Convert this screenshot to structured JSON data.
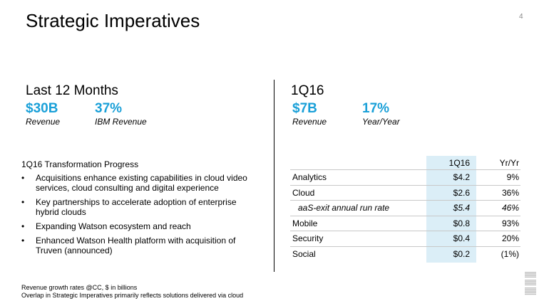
{
  "title": "Strategic Imperatives",
  "page_number": "4",
  "left": {
    "heading": "Last 12 Months",
    "stats": [
      {
        "value": "$30B",
        "label": "Revenue"
      },
      {
        "value": "37%",
        "label": "IBM Revenue"
      }
    ],
    "progress_title": "1Q16 Transformation Progress",
    "bullets": [
      "Acquisitions enhance existing capabilities in cloud video services, cloud consulting and digital experience",
      "Key partnerships to accelerate adoption of enterprise hybrid clouds",
      "Expanding Watson ecosystem and reach",
      "Enhanced Watson Health platform with acquisition of Truven (announced)"
    ]
  },
  "right": {
    "heading": "1Q16",
    "stats": [
      {
        "value": "$7B",
        "label": "Revenue"
      },
      {
        "value": "17%",
        "label": "Year/Year"
      }
    ],
    "table": {
      "headers": [
        "",
        "1Q16",
        "Yr/Yr"
      ],
      "rows": [
        {
          "label": "Analytics",
          "value": "$4.2",
          "yy": "9%"
        },
        {
          "label": "Cloud",
          "value": "$2.6",
          "yy": "36%"
        },
        {
          "label": "aaS-exit annual run rate",
          "value": "$5.4",
          "yy": "46%"
        },
        {
          "label": "Mobile",
          "value": "$0.8",
          "yy": "93%"
        },
        {
          "label": "Security",
          "value": "$0.4",
          "yy": "20%"
        },
        {
          "label": "Social",
          "value": "$0.2",
          "yy": "(1%)"
        }
      ]
    }
  },
  "footnotes": [
    "Revenue growth rates @CC, $ in billions",
    "Overlap in Strategic Imperatives primarily reflects solutions delivered via cloud"
  ],
  "logo": {
    "text": "IBM",
    "color": "#c0c0c0"
  },
  "colors": {
    "accent": "#1aa0d8",
    "table_highlight": "#dbeef7"
  }
}
